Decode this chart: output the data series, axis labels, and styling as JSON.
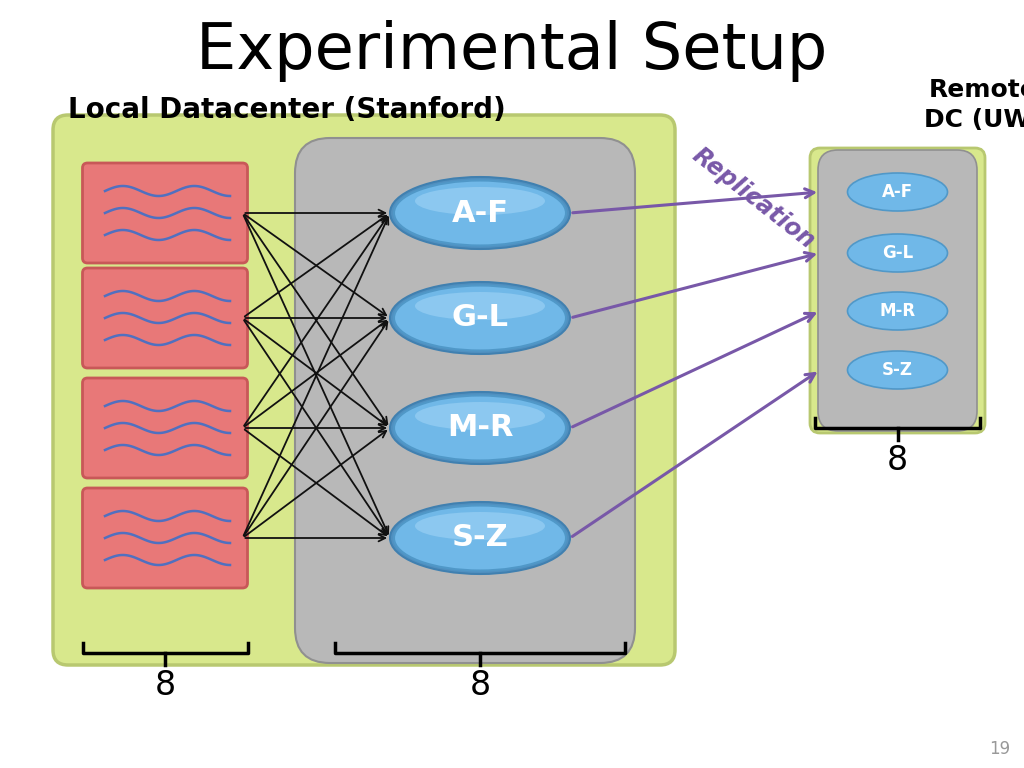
{
  "title": "Experimental Setup",
  "subtitle": "Local Datacenter (Stanford)",
  "remote_label": "Remote\nDC (UW)",
  "replication_label": "Replication",
  "shard_labels": [
    "A-F",
    "G-L",
    "M-R",
    "S-Z"
  ],
  "count_label": "8",
  "page_number": "19",
  "bg_color": "#ffffff",
  "local_box_color": "#d8e88c",
  "local_box_edge": "#b8c870",
  "server_box_color": "#b8b8b8",
  "server_box_edge": "#909090",
  "shard_ellipse_color_top": "#88c8f0",
  "shard_ellipse_color": "#70b8e8",
  "shard_ellipse_edge": "#5098c8",
  "client_rect_color": "#e87878",
  "client_rect_edge": "#c85858",
  "wave_color": "#5070c0",
  "arrow_color": "#111111",
  "replication_arrow_color": "#7858a8",
  "replication_text_color": "#7858a8",
  "remote_box_color": "#d8e88c",
  "remote_box_edge": "#b8c870",
  "remote_server_color": "#b8b8b8",
  "remote_server_edge": "#909090",
  "remote_ellipse_color": "#70b8e8",
  "remote_ellipse_edge": "#5098c8",
  "title_fontsize": 46,
  "subtitle_fontsize": 20,
  "shard_fontsize": 22,
  "small_shard_fontsize": 12,
  "remote_label_fontsize": 18,
  "count_fontsize": 24,
  "page_fontsize": 12
}
